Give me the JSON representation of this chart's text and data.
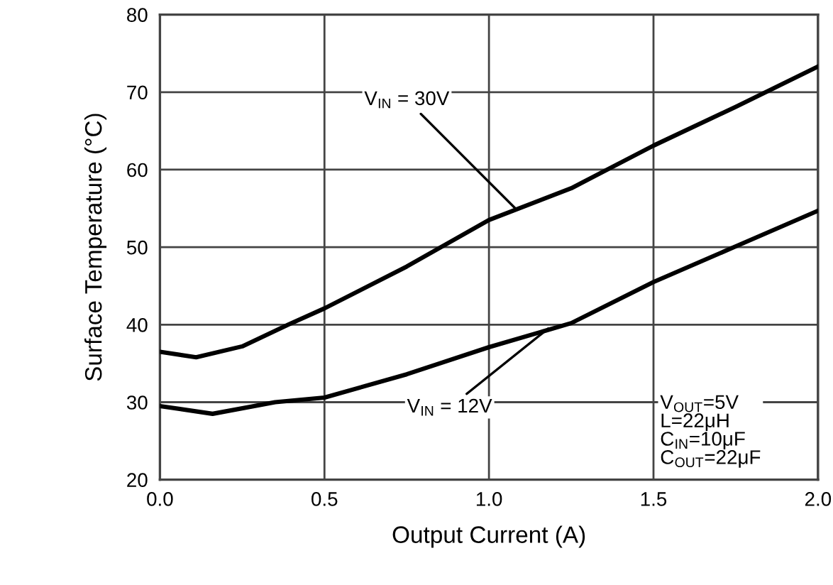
{
  "chart_data": {
    "type": "line",
    "xlabel": "Output Current (A)",
    "ylabel": "Surface Temperature (°C)",
    "xlim": [
      0,
      2
    ],
    "ylim": [
      20,
      80
    ],
    "xticks": [
      {
        "value": 0,
        "label": "0.0"
      },
      {
        "value": 0.5,
        "label": "0.5"
      },
      {
        "value": 1,
        "label": "1.0"
      },
      {
        "value": 1.5,
        "label": "1.5"
      },
      {
        "value": 2,
        "label": "2.0"
      }
    ],
    "yticks": [
      20,
      30,
      40,
      50,
      60,
      70,
      80
    ],
    "grid": true,
    "marker": "none",
    "line_style": "solid",
    "series": [
      {
        "color": "#000000",
        "x": [
          0,
          0.11,
          0.25,
          0.39,
          0.5,
          0.75,
          1.0,
          1.25,
          1.5,
          1.75,
          2.0
        ],
        "values": [
          36.5,
          35.8,
          37.2,
          40,
          42.1,
          47.5,
          53.5,
          57.6,
          63.1,
          68.1,
          73.3
        ]
      },
      {
        "color": "#000000",
        "x": [
          0,
          0.16,
          0.35,
          0.5,
          0.75,
          1.0,
          1.25,
          1.5,
          1.75,
          2.0
        ],
        "values": [
          29.5,
          28.5,
          30,
          30.6,
          33.6,
          37.1,
          40.2,
          45.5,
          50.1,
          54.7
        ]
      }
    ],
    "annotations": [
      {
        "text": "V$_{IN}$ = 30V",
        "x": 1.08,
        "y": 55
      },
      {
        "text": "V$_{IN}$ = 12V",
        "x": 1.18,
        "y": 39.5
      },
      "V$_{OUT}$=5V\nL=22μH\nC$_{IN}$=10μF\nC$_{OUT}$=22μF"
    ]
  }
}
